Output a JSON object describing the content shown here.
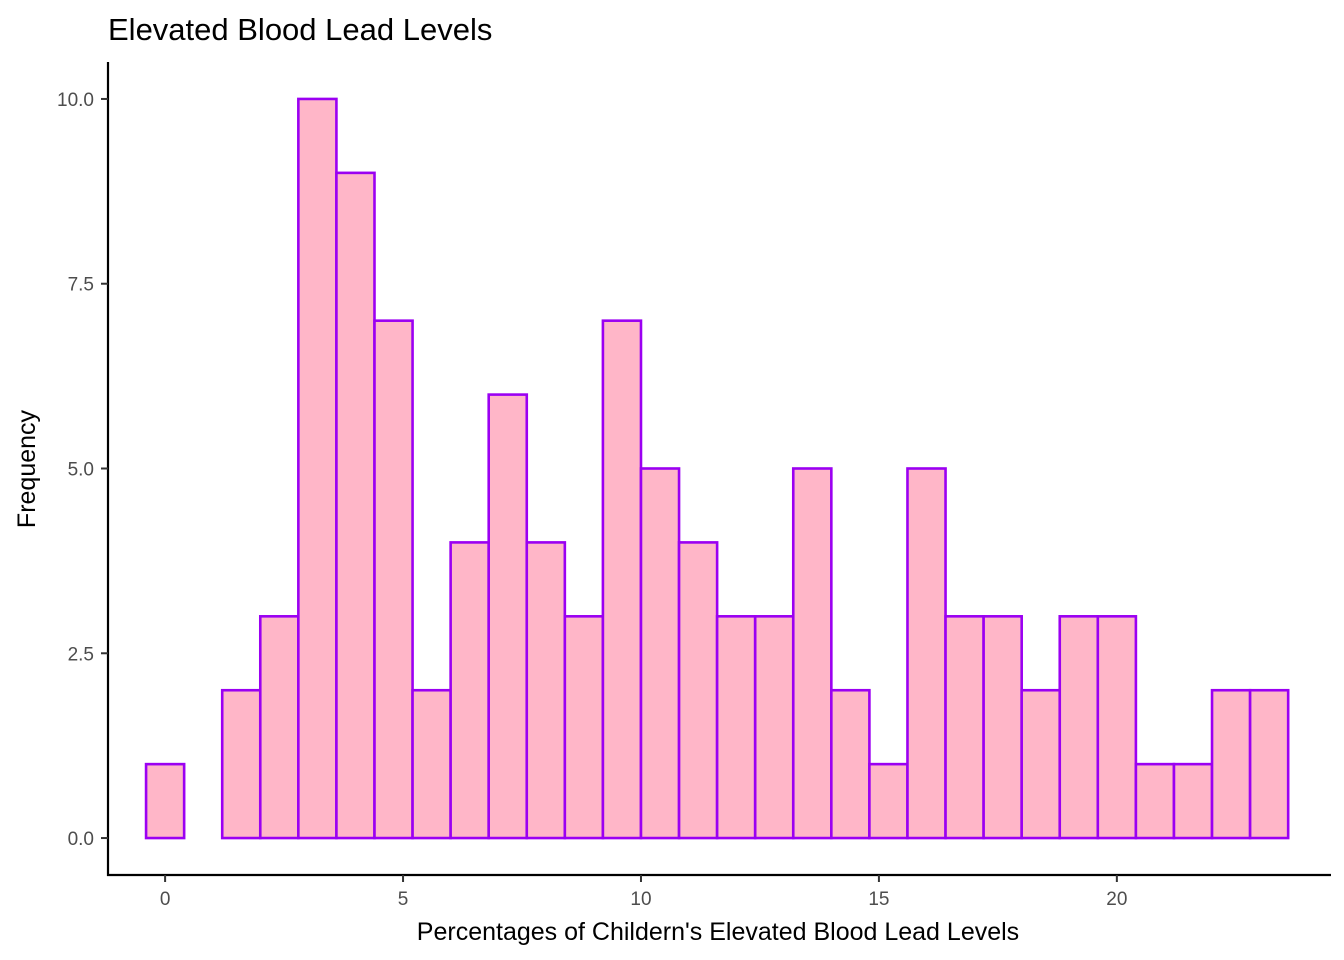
{
  "chart_data": {
    "type": "bar",
    "title": "Elevated Blood Lead Levels",
    "xlabel": "Percentages of Childern's Elevated Blood Lead Levels",
    "ylabel": "Frequency",
    "bin_width": 0.8,
    "first_bin_start": -0.4,
    "values": [
      1,
      0,
      2,
      3,
      10,
      9,
      7,
      2,
      4,
      6,
      4,
      3,
      7,
      5,
      4,
      3,
      3,
      5,
      2,
      1,
      5,
      3,
      3,
      2,
      3,
      3,
      1,
      1,
      2,
      2
    ],
    "xlim": [
      -1.2,
      24.5
    ],
    "ylim": [
      -0.5,
      10.5
    ],
    "x_ticks": [
      0,
      5,
      10,
      15,
      20
    ],
    "x_tick_labels": [
      "0",
      "5",
      "10",
      "15",
      "20"
    ],
    "y_ticks": [
      0,
      2.5,
      5,
      7.5,
      10
    ],
    "y_tick_labels": [
      "0.0",
      "2.5",
      "5.0",
      "7.5",
      "10.0"
    ],
    "grid": false,
    "legend": "none",
    "colors": {
      "fill": "#ffb6c8",
      "outline": "#9b00f2"
    }
  }
}
